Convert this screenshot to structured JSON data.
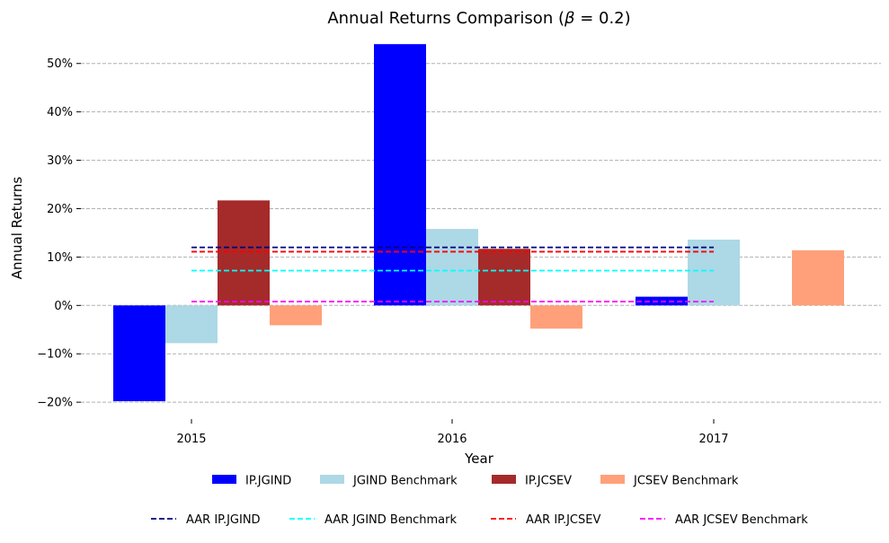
{
  "chart_data": {
    "type": "bar",
    "title": "Annual Returns Comparison (β = 0.2)",
    "title_prefix": "Annual Returns Comparison (",
    "title_beta": "β",
    "title_suffix": " = 0.2)",
    "xlabel": "Year",
    "ylabel": "Annual Returns",
    "categories": [
      "2015",
      "2016",
      "2017"
    ],
    "ylim": [
      -0.235,
      0.57
    ],
    "yticks": [
      -0.2,
      -0.1,
      0.0,
      0.1,
      0.2,
      0.3,
      0.4,
      0.5
    ],
    "ytick_labels": [
      "−20%",
      "−10%",
      "0%",
      "10%",
      "20%",
      "30%",
      "40%",
      "50%"
    ],
    "grid": true,
    "series": [
      {
        "name": "IP.JGIND",
        "color": "#0000ff",
        "values": [
          -0.198,
          0.54,
          0.018
        ]
      },
      {
        "name": "JGIND Benchmark",
        "color": "#add8e6",
        "values": [
          -0.078,
          0.158,
          0.136
        ]
      },
      {
        "name": "IP.JCSEV",
        "color": "#a52a2a",
        "values": [
          0.217,
          0.117,
          null
        ]
      },
      {
        "name": "JCSEV Benchmark",
        "color": "#ffa07a",
        "values": [
          -0.041,
          -0.048,
          0.114
        ]
      }
    ],
    "reference_lines": [
      {
        "name": "AAR IP.JGIND",
        "color": "#000080",
        "value": 0.12
      },
      {
        "name": "AAR JGIND Benchmark",
        "color": "#00ffff",
        "value": 0.072
      },
      {
        "name": "AAR IP.JCSEV",
        "color": "#ff0000",
        "value": 0.111
      },
      {
        "name": "AAR JCSEV Benchmark",
        "color": "#ff00ff",
        "value": 0.008
      }
    ],
    "legend_placement": "bottom"
  }
}
